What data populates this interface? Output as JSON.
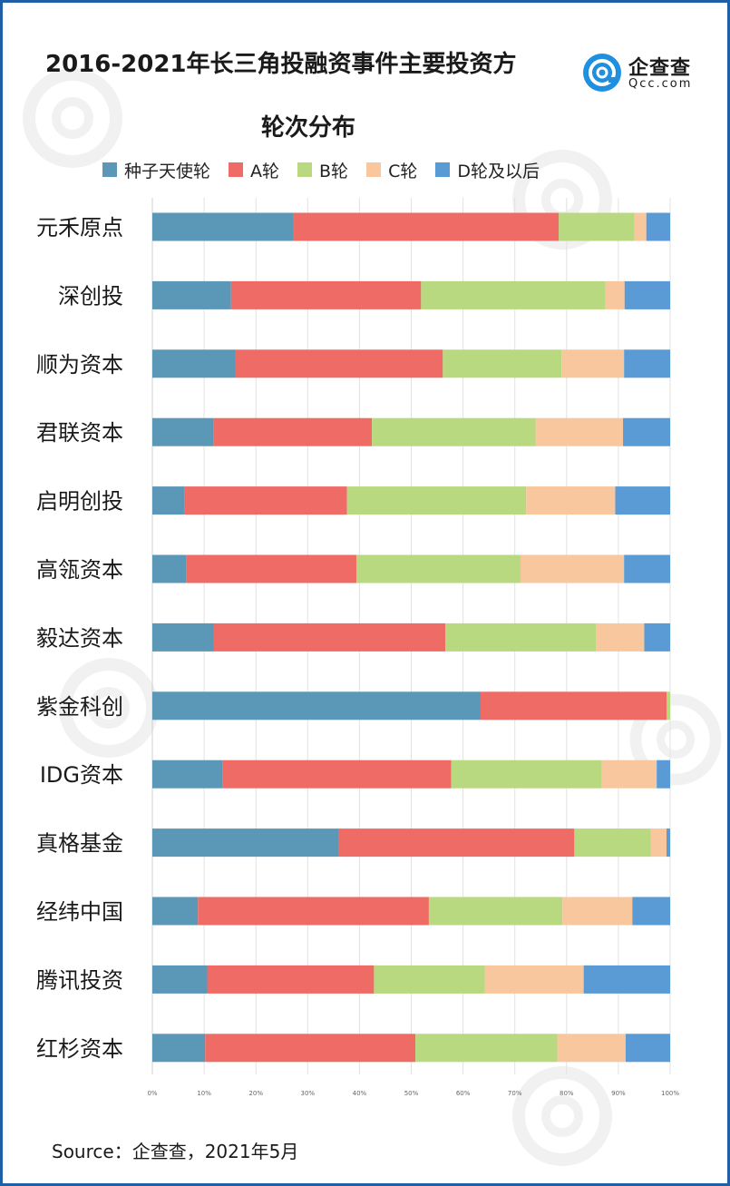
{
  "title_line1": "2016-2021年长三角投融资事件主要投资方",
  "title_line2": "轮次分布",
  "logo": {
    "cn": "企查查",
    "en": "Qcc.com"
  },
  "source": "Source：企查查，2021年5月",
  "chart_data": {
    "type": "bar",
    "orientation": "horizontal",
    "stacked": "percent",
    "categories": [
      "元禾原点",
      "深创投",
      "顺为资本",
      "君联资本",
      "启明创投",
      "高瓴资本",
      "毅达资本",
      "紫金科创",
      "IDG资本",
      "真格基金",
      "经纬中国",
      "腾讯投资",
      "红杉资本"
    ],
    "series": [
      {
        "name": "种子天使轮",
        "color": "#5b97b7",
        "values": [
          27.3,
          15.2,
          16.1,
          11.8,
          6.2,
          6.6,
          11.9,
          63.4,
          13.5,
          35.9,
          8.8,
          10.6,
          10.2
        ]
      },
      {
        "name": "A轮",
        "color": "#ef6b66",
        "values": [
          51.2,
          36.7,
          40.0,
          30.6,
          31.4,
          32.8,
          44.7,
          35.9,
          44.2,
          45.6,
          44.6,
          32.2,
          40.6
        ]
      },
      {
        "name": "B轮",
        "color": "#b8d97f",
        "values": [
          14.6,
          35.6,
          22.9,
          31.6,
          34.6,
          31.7,
          29.1,
          0.7,
          29.1,
          14.8,
          25.8,
          21.4,
          27.4
        ]
      },
      {
        "name": "C轮",
        "color": "#f9c79d",
        "values": [
          2.3,
          3.7,
          12.1,
          16.9,
          17.2,
          20.0,
          9.3,
          0,
          10.6,
          3.0,
          13.5,
          19.1,
          13.2
        ]
      },
      {
        "name": "D轮及以后",
        "color": "#5a9bd5",
        "values": [
          4.6,
          8.8,
          8.9,
          9.1,
          10.6,
          8.9,
          5.0,
          0,
          2.6,
          0.7,
          7.3,
          16.7,
          8.6
        ]
      }
    ],
    "xlim": [
      0,
      100
    ],
    "x_ticks": [
      "0%",
      "10%",
      "20%",
      "30%",
      "40%",
      "50%",
      "60%",
      "70%",
      "80%",
      "90%",
      "100%"
    ],
    "grid": true,
    "legend_position": "top"
  }
}
